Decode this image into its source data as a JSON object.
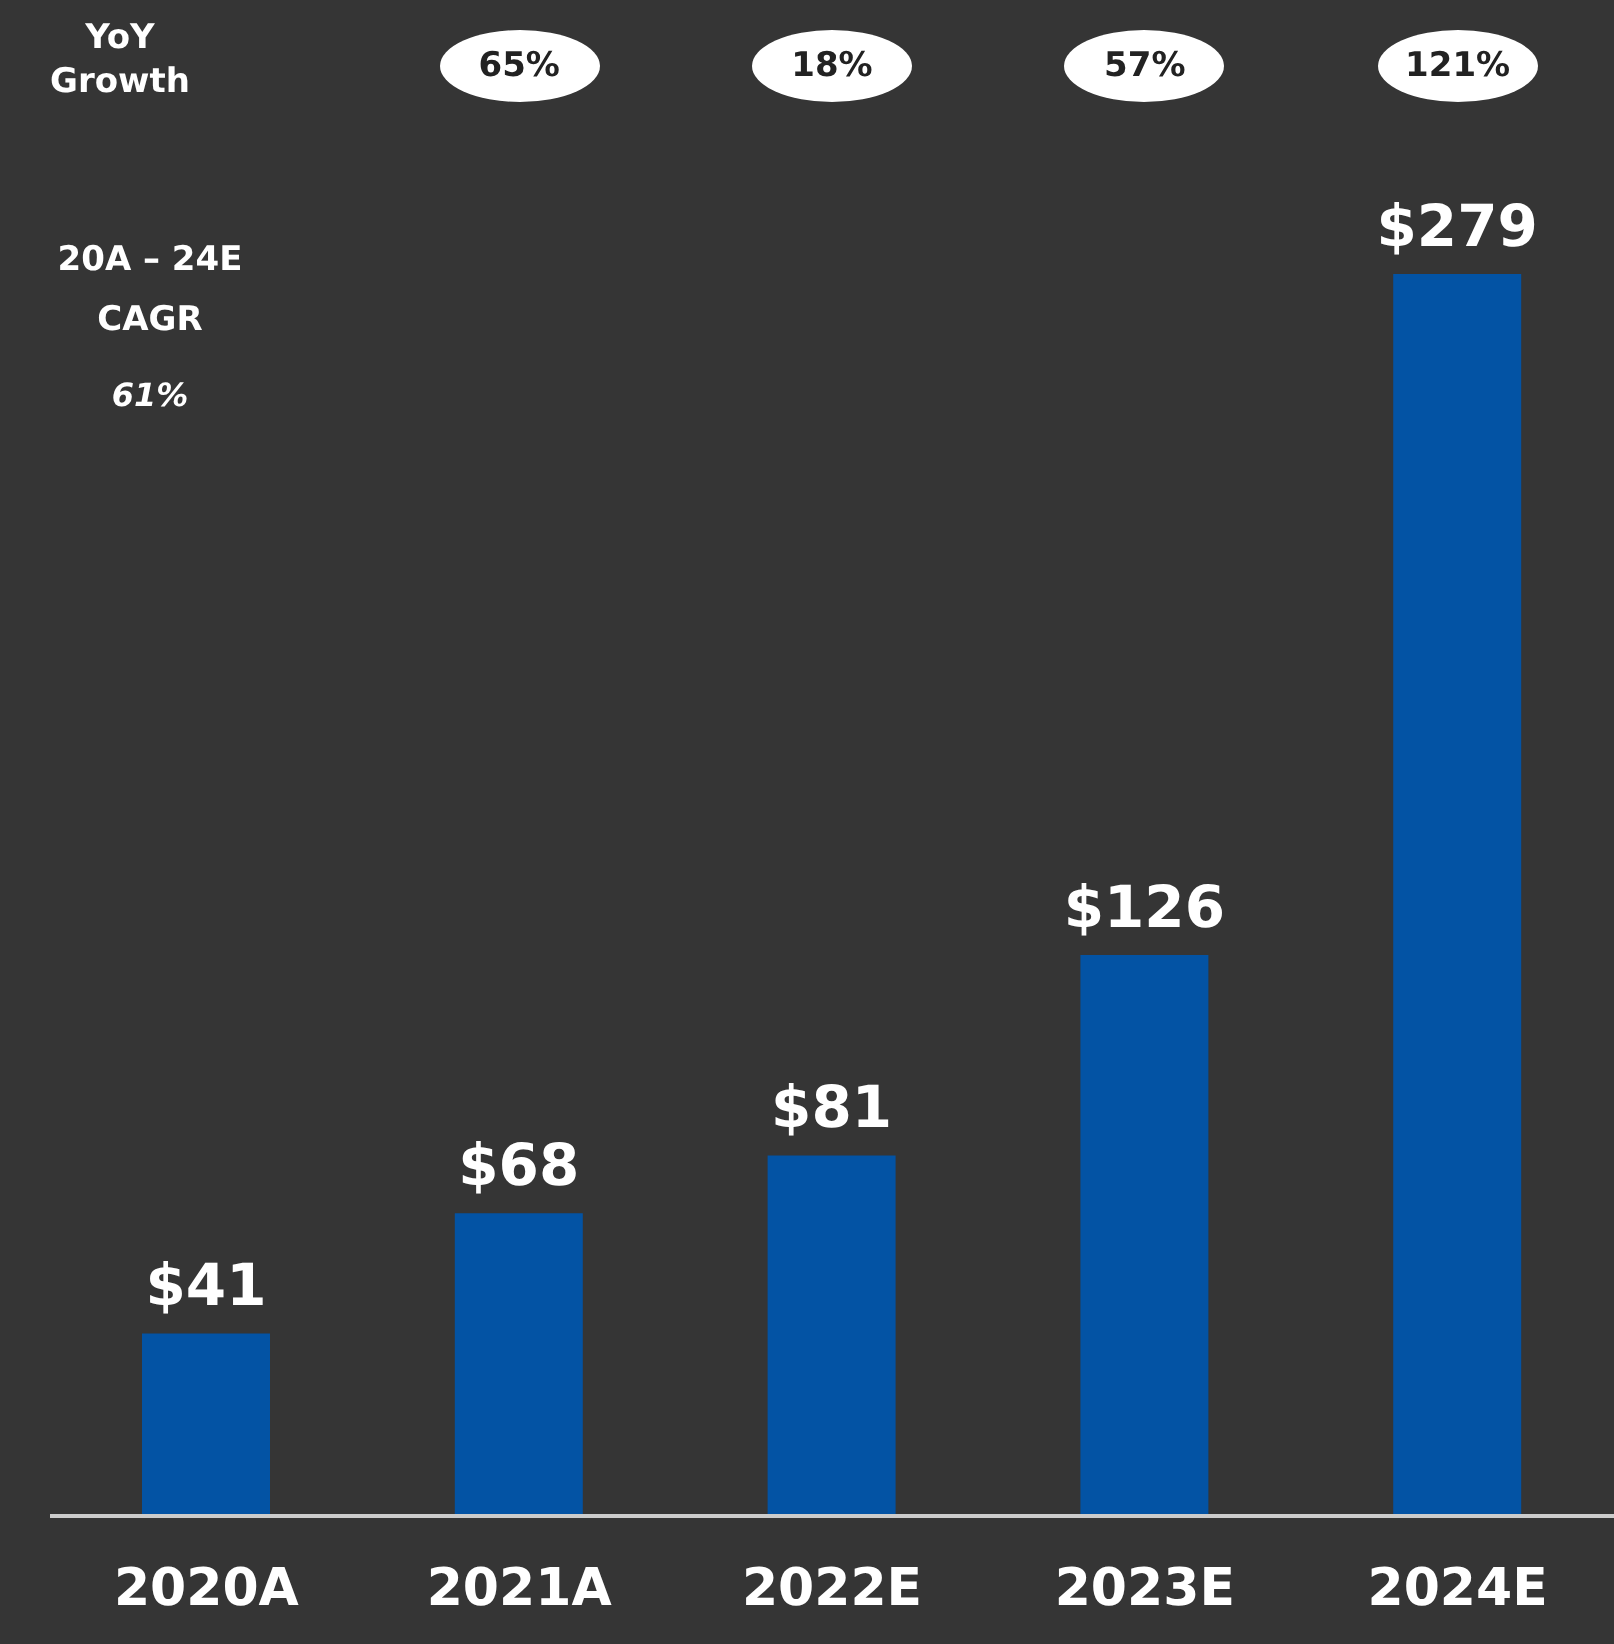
{
  "chart_data": {
    "type": "bar",
    "categories": [
      "2020A",
      "2021A",
      "2022E",
      "2023E",
      "2024E"
    ],
    "values": [
      41,
      68,
      81,
      126,
      279
    ],
    "value_labels": [
      "$41",
      "$68",
      "$81",
      "$126",
      "$279"
    ],
    "color": "#0353a4",
    "annotations": [
      "YoY Growth",
      "65%",
      "18%",
      "57%",
      "121%",
      "20A – 24E CAGR",
      "61%"
    ]
  }
}
